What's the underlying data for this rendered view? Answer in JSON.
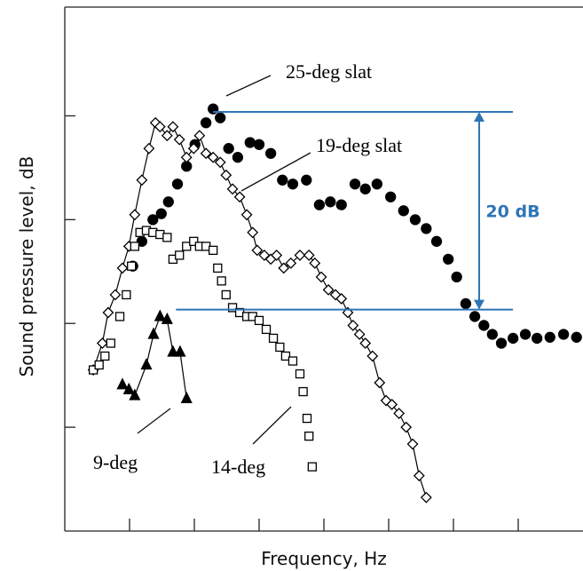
{
  "chart_data": {
    "type": "scatter",
    "x_label": "Frequency, Hz",
    "y_label": "Sound pressure level, dB",
    "xlim": [
      0,
      8
    ],
    "ylim": [
      0,
      53
    ],
    "xticks": [
      1,
      2,
      3,
      4,
      5,
      6,
      7
    ],
    "yticks": [
      10.5,
      21,
      31.5,
      42
    ],
    "annotation": "20 dB",
    "annotation_color": "#2e75b6",
    "reference_levels": [
      42.4,
      22.4
    ],
    "series": [
      {
        "name": "25-deg slat",
        "color": "#000000",
        "marker": "circle",
        "filled": true,
        "line": false,
        "x": [
          1.05,
          1.19,
          1.36,
          1.49,
          1.6,
          1.74,
          1.88,
          2.01,
          2.18,
          2.29,
          2.4,
          2.53,
          2.67,
          2.86,
          3.0,
          3.18,
          3.36,
          3.52,
          3.73,
          3.93,
          4.1,
          4.27,
          4.48,
          4.64,
          4.82,
          5.03,
          5.23,
          5.41,
          5.58,
          5.74,
          5.92,
          6.05,
          6.19,
          6.33,
          6.47,
          6.6,
          6.74,
          6.92,
          7.11,
          7.29,
          7.49,
          7.7,
          7.9
        ],
        "values": [
          26.8,
          29.3,
          31.5,
          32.1,
          33.3,
          35.1,
          36.9,
          39.1,
          41.3,
          42.7,
          41.8,
          38.7,
          37.8,
          39.3,
          39.1,
          38.2,
          35.5,
          35.1,
          35.5,
          33.0,
          33.3,
          33.0,
          35.1,
          34.6,
          35.1,
          33.8,
          32.4,
          31.5,
          30.6,
          29.3,
          27.5,
          25.7,
          23.0,
          21.7,
          20.8,
          19.9,
          19.0,
          19.5,
          19.9,
          19.5,
          19.6,
          19.9,
          19.6
        ]
      },
      {
        "name": "19-deg slat",
        "color": "#000000",
        "marker": "diamond",
        "filled": false,
        "line": true,
        "x": [
          0.44,
          0.58,
          0.67,
          0.78,
          0.89,
          0.99,
          1.08,
          1.19,
          1.3,
          1.4,
          1.47,
          1.58,
          1.67,
          1.77,
          1.88,
          1.99,
          2.08,
          2.18,
          2.29,
          2.4,
          2.49,
          2.59,
          2.7,
          2.81,
          2.9,
          2.97,
          3.08,
          3.18,
          3.27,
          3.38,
          3.49,
          3.63,
          3.77,
          3.86,
          3.96,
          4.07,
          4.18,
          4.27,
          4.37,
          4.45,
          4.55,
          4.64,
          4.75,
          4.86,
          4.96,
          5.05,
          5.16,
          5.27,
          5.37,
          5.47,
          5.58
        ],
        "values": [
          16.3,
          19.0,
          22.1,
          23.9,
          26.6,
          28.8,
          32.0,
          35.5,
          38.7,
          41.3,
          40.9,
          40.0,
          40.9,
          39.6,
          37.8,
          38.7,
          40.0,
          38.2,
          37.8,
          37.3,
          36.0,
          34.6,
          33.8,
          32.0,
          30.2,
          28.4,
          27.9,
          27.5,
          27.9,
          26.6,
          27.1,
          27.9,
          27.9,
          27.1,
          25.7,
          24.4,
          23.9,
          23.5,
          22.1,
          20.8,
          19.9,
          19.0,
          17.7,
          15.0,
          13.2,
          12.8,
          11.9,
          10.5,
          8.8,
          5.6,
          3.4
        ]
      },
      {
        "name": "14-deg",
        "color": "#000000",
        "marker": "square",
        "filled": false,
        "line": false,
        "x": [
          0.44,
          0.53,
          0.62,
          0.71,
          0.85,
          0.95,
          1.03,
          1.08,
          1.16,
          1.26,
          1.36,
          1.47,
          1.58,
          1.67,
          1.77,
          1.88,
          1.99,
          2.08,
          2.18,
          2.29,
          2.36,
          2.42,
          2.49,
          2.59,
          2.7,
          2.81,
          2.9,
          3.0,
          3.11,
          3.22,
          3.32,
          3.41,
          3.52,
          3.63,
          3.68,
          3.74,
          3.77,
          3.82
        ],
        "values": [
          16.3,
          16.8,
          17.7,
          19.0,
          21.7,
          23.9,
          26.8,
          28.8,
          30.2,
          30.4,
          30.2,
          30.0,
          29.7,
          27.5,
          27.9,
          28.8,
          29.3,
          28.8,
          28.8,
          28.4,
          26.6,
          25.3,
          23.9,
          22.6,
          22.1,
          21.7,
          21.7,
          21.3,
          20.4,
          19.5,
          18.6,
          17.7,
          17.2,
          15.9,
          14.1,
          11.4,
          9.6,
          6.5
        ]
      },
      {
        "name": "9-deg",
        "color": "#000000",
        "marker": "triangle",
        "filled": true,
        "line": true,
        "x": [
          0.89,
          0.99,
          1.08,
          1.26,
          1.37,
          1.47,
          1.58,
          1.67,
          1.78,
          1.88
        ],
        "values": [
          14.8,
          14.3,
          13.7,
          16.8,
          19.9,
          21.7,
          21.4,
          18.1,
          18.1,
          13.4
        ]
      }
    ]
  }
}
